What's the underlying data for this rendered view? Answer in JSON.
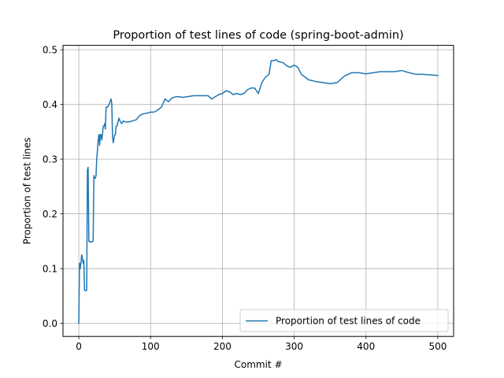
{
  "chart_data": {
    "type": "line",
    "title": "Proportion of test lines of code (spring-boot-admin)",
    "xlabel": "Commit #",
    "ylabel": "Proportion of test lines",
    "xlim": [
      -22,
      522
    ],
    "ylim": [
      -0.024,
      0.508
    ],
    "xticks": [
      0,
      100,
      200,
      300,
      400,
      500
    ],
    "yticks": [
      0.0,
      0.1,
      0.2,
      0.3,
      0.4,
      0.5
    ],
    "xtick_labels": [
      "0",
      "100",
      "200",
      "300",
      "400",
      "500"
    ],
    "ytick_labels": [
      "0.0",
      "0.1",
      "0.2",
      "0.3",
      "0.4",
      "0.5"
    ],
    "grid": true,
    "legend_position": "bottom-right",
    "colors": {
      "line": "#1f77b4",
      "grid": "#b0b0b0",
      "axis": "#000000"
    },
    "series": [
      {
        "name": "Proportion of test lines of code",
        "x": [
          0,
          1,
          2,
          3,
          4,
          5,
          6,
          7,
          8,
          9,
          10,
          11,
          12,
          13,
          14,
          15,
          16,
          20,
          21,
          22,
          23,
          24,
          25,
          27,
          28,
          29,
          30,
          31,
          32,
          33,
          34,
          35,
          36,
          37,
          38,
          40,
          42,
          45,
          46,
          47,
          48,
          50,
          51,
          52,
          53,
          55,
          56,
          58,
          60,
          62,
          65,
          70,
          75,
          80,
          85,
          90,
          95,
          100,
          105,
          110,
          115,
          120,
          125,
          130,
          135,
          140,
          145,
          150,
          160,
          170,
          180,
          185,
          190,
          195,
          200,
          205,
          210,
          215,
          220,
          225,
          230,
          235,
          240,
          245,
          250,
          255,
          260,
          265,
          268,
          272,
          275,
          278,
          280,
          285,
          290,
          295,
          300,
          305,
          310,
          315,
          320,
          330,
          340,
          350,
          360,
          370,
          380,
          390,
          400,
          410,
          420,
          430,
          440,
          450,
          460,
          470,
          480,
          490,
          500
        ],
        "y": [
          0.0,
          0.11,
          0.1,
          0.11,
          0.125,
          0.12,
          0.11,
          0.115,
          0.06,
          0.06,
          0.06,
          0.06,
          0.28,
          0.285,
          0.15,
          0.15,
          0.148,
          0.15,
          0.27,
          0.265,
          0.265,
          0.27,
          0.3,
          0.335,
          0.345,
          0.325,
          0.345,
          0.345,
          0.335,
          0.345,
          0.36,
          0.36,
          0.365,
          0.355,
          0.395,
          0.395,
          0.4,
          0.41,
          0.4,
          0.34,
          0.33,
          0.345,
          0.345,
          0.36,
          0.36,
          0.37,
          0.375,
          0.368,
          0.365,
          0.37,
          0.368,
          0.368,
          0.37,
          0.372,
          0.38,
          0.383,
          0.384,
          0.386,
          0.386,
          0.39,
          0.395,
          0.41,
          0.405,
          0.412,
          0.414,
          0.414,
          0.413,
          0.414,
          0.416,
          0.416,
          0.416,
          0.41,
          0.414,
          0.418,
          0.42,
          0.425,
          0.423,
          0.418,
          0.42,
          0.418,
          0.42,
          0.427,
          0.43,
          0.43,
          0.42,
          0.44,
          0.45,
          0.455,
          0.48,
          0.48,
          0.482,
          0.478,
          0.478,
          0.476,
          0.47,
          0.468,
          0.472,
          0.468,
          0.455,
          0.45,
          0.445,
          0.442,
          0.44,
          0.438,
          0.44,
          0.452,
          0.458,
          0.458,
          0.456,
          0.458,
          0.46,
          0.46,
          0.46,
          0.462,
          0.458,
          0.455,
          0.455,
          0.454,
          0.453
        ]
      }
    ]
  }
}
